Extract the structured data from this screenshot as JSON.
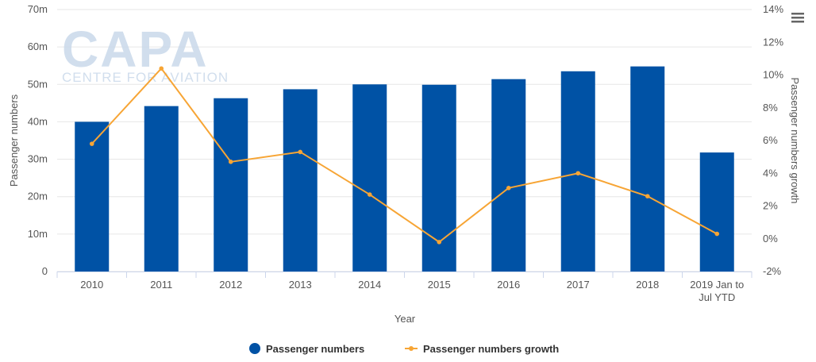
{
  "watermark": {
    "title": "CAPA",
    "subtitle": "CENTRE FOR AVIATION"
  },
  "menu": {
    "icon": "hamburger-menu-icon"
  },
  "colors": {
    "bars": "#0052a5",
    "line": "#f7a535",
    "grid": "#e6e6e6",
    "axis": "#ccd6eb"
  },
  "chart_data": {
    "type": "bar",
    "categories": [
      "2010",
      "2011",
      "2012",
      "2013",
      "2014",
      "2015",
      "2016",
      "2017",
      "2018",
      "2019 Jan to Jul YTD"
    ],
    "category_lines": [
      [
        "2010"
      ],
      [
        "2011"
      ],
      [
        "2012"
      ],
      [
        "2013"
      ],
      [
        "2014"
      ],
      [
        "2015"
      ],
      [
        "2016"
      ],
      [
        "2017"
      ],
      [
        "2018"
      ],
      [
        "2019 Jan to",
        "Jul YTD"
      ]
    ],
    "series": [
      {
        "name": "Passenger numbers",
        "type": "bar",
        "axis": "left",
        "unit": "m",
        "values": [
          40.0,
          44.2,
          46.3,
          48.7,
          50.0,
          49.9,
          51.4,
          53.5,
          54.8,
          31.8
        ]
      },
      {
        "name": "Passenger numbers growth",
        "type": "line",
        "axis": "right",
        "unit": "%",
        "values": [
          5.8,
          10.4,
          4.7,
          5.3,
          2.7,
          -0.2,
          3.1,
          4.0,
          2.6,
          0.3
        ]
      }
    ],
    "xlabel": "Year",
    "ylabel_left": "Passenger numbers",
    "ylabel_right": "Passenger numbers growth",
    "y_left": {
      "min": 0,
      "max": 70,
      "ticks": [
        0,
        10,
        20,
        30,
        40,
        50,
        60,
        70
      ],
      "tick_labels": [
        "0",
        "10m",
        "20m",
        "30m",
        "40m",
        "50m",
        "60m",
        "70m"
      ]
    },
    "y_right": {
      "min": -2,
      "max": 14,
      "ticks": [
        -2,
        0,
        2,
        4,
        6,
        8,
        10,
        12,
        14
      ],
      "tick_labels": [
        "-2%",
        "0%",
        "2%",
        "4%",
        "6%",
        "8%",
        "10%",
        "12%",
        "14%"
      ]
    },
    "grid": true,
    "legend_position": "bottom-center"
  }
}
